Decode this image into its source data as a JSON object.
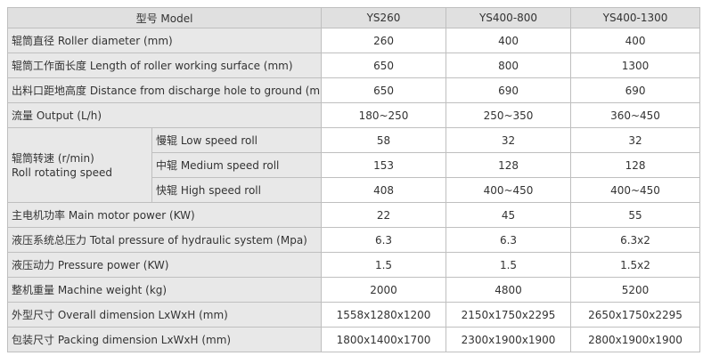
{
  "table": {
    "header": [
      "型号 Model",
      "YS260",
      "YS400-800",
      "YS400-1300"
    ],
    "rows": [
      {
        "label": "辊筒直径 Roller diameter (mm)",
        "values": [
          "260",
          "400",
          "400"
        ]
      },
      {
        "label": "辊筒工作面长度 Length of roller working surface (mm)",
        "values": [
          "650",
          "800",
          "1300"
        ]
      },
      {
        "label": "出料口距地高度 Distance from discharge hole to ground (mm)",
        "values": [
          "650",
          "690",
          "690"
        ]
      },
      {
        "label": "流量 Output (L/h)",
        "values": [
          "180~250",
          "250~350",
          "360~450"
        ]
      },
      {
        "label": [
          "辊筒转速 (r/min)",
          "Roll rotating speed"
        ],
        "sub": [
          {
            "label": "慢辊 Low speed roll",
            "values": [
              "58",
              "32",
              "32"
            ]
          },
          {
            "label": "中辊 Medium speed roll",
            "values": [
              "153",
              "128",
              "128"
            ]
          },
          {
            "label": "快辊 High speed roll",
            "values": [
              "408",
              "400~450",
              "400~450"
            ]
          }
        ]
      },
      {
        "label": "主电机功率 Main motor power (KW)",
        "values": [
          "22",
          "45",
          "55"
        ]
      },
      {
        "label": "液压系统总压力 Total pressure of hydraulic system (Mpa)",
        "values": [
          "6.3",
          "6.3",
          "6.3x2"
        ]
      },
      {
        "label": "液压动力 Pressure power (KW)",
        "values": [
          "1.5",
          "1.5",
          "1.5x2"
        ]
      },
      {
        "label": "整机重量 Machine weight (kg)",
        "values": [
          "2000",
          "4800",
          "5200"
        ]
      },
      {
        "label": "外型尺寸 Overall dimension LxWxH (mm)",
        "values": [
          "1558x1280x1200",
          "2150x1750x2295",
          "2650x1750x2295"
        ]
      },
      {
        "label": "包装尺寸 Packing dimension LxWxH (mm)",
        "values": [
          "1800x1400x1700",
          "2300x1900x1900",
          "2800x1900x1900"
        ]
      }
    ]
  }
}
